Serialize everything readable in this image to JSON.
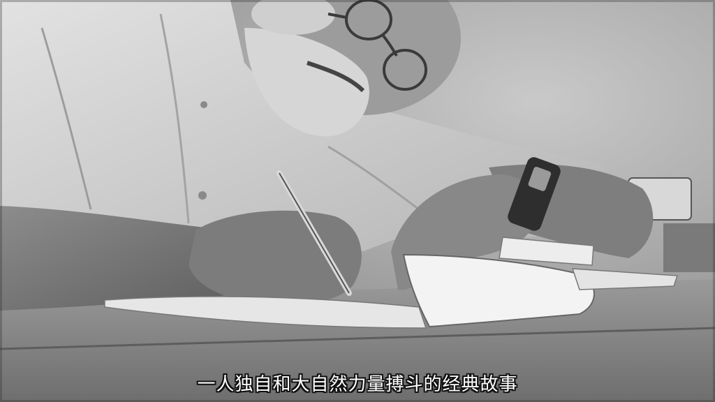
{
  "video": {
    "subtitle": "一人独自和大自然力量搏斗的经典故事"
  }
}
